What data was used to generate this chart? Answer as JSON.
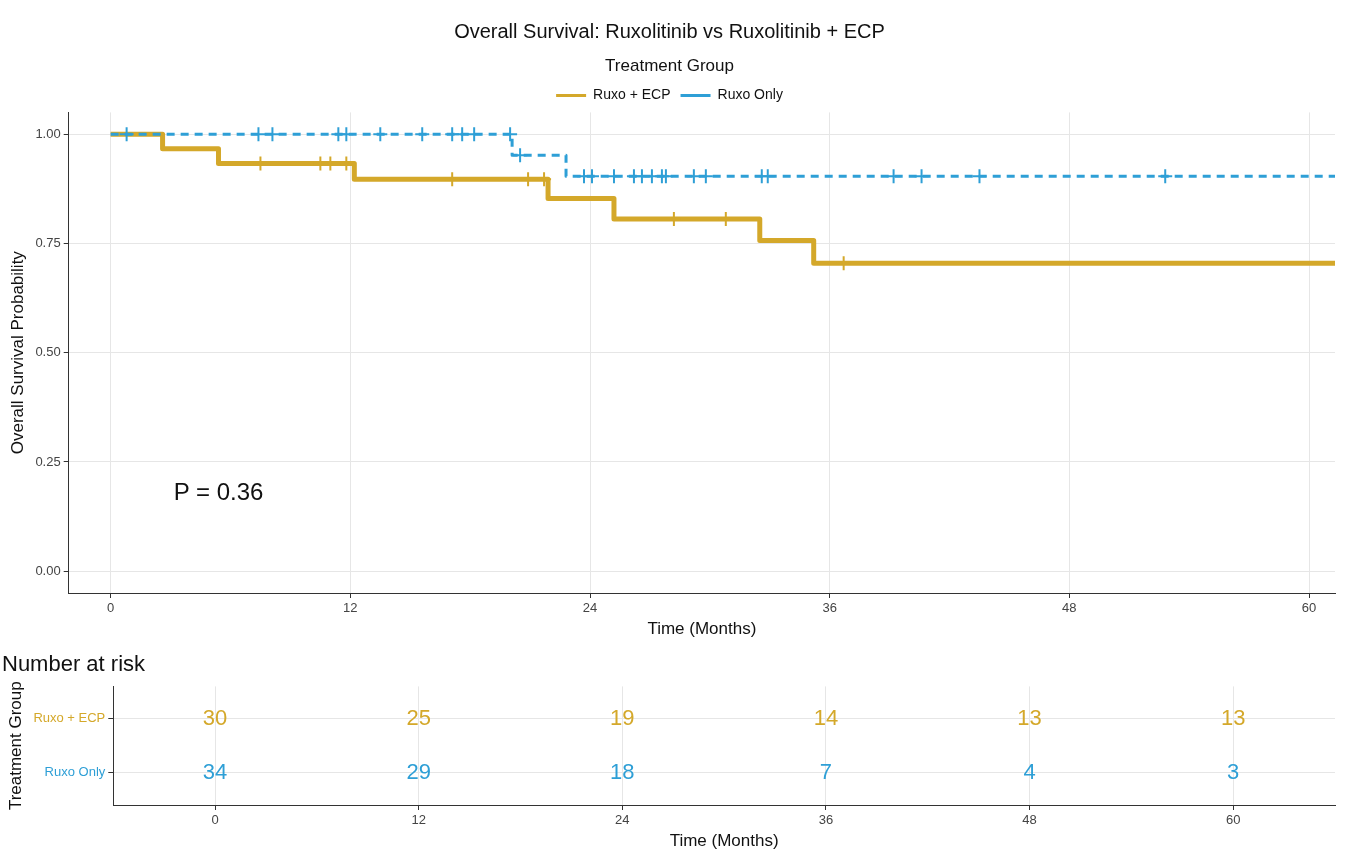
{
  "chart_data": [
    {
      "type": "step",
      "title": "Overall Survival: Ruxolitinib vs Ruxolitinib + ECP",
      "xlabel": "Time (Months)",
      "ylabel": "Overall Survival Probability",
      "legend_title": "Treatment Group",
      "legend": "top",
      "grid": true,
      "xlim": [
        -2.1,
        61.3
      ],
      "xticks": [
        0,
        12,
        24,
        36,
        48,
        60
      ],
      "ylim": [
        -0.05,
        1.05
      ],
      "yticks": [
        {
          "value": 0,
          "label": "0.00"
        },
        {
          "value": 0.25,
          "label": "0.25"
        },
        {
          "value": 0.5,
          "label": "0.50"
        },
        {
          "value": 0.75,
          "label": "0.75"
        },
        {
          "value": 1,
          "label": "1.00"
        }
      ],
      "annotations": [
        "P = 0.36"
      ],
      "series": [
        {
          "name": "Ruxo + ECP",
          "color": "#d4a82a",
          "line_style": "solid",
          "x": [
            0,
            2.6,
            5.4,
            12.2,
            21.9,
            25.2,
            32.5,
            35.2,
            61.3
          ],
          "values": [
            1,
            0.967,
            0.933,
            0.897,
            0.853,
            0.806,
            0.757,
            0.705,
            0.705
          ]
        },
        {
          "name": "Ruxo Only",
          "color": "#2e9fd6",
          "line_style": "dashed",
          "x": [
            0,
            20.1,
            22.8,
            61.3
          ],
          "values": [
            1,
            0.952,
            0.904,
            0.904
          ]
        },
        {
          "type": "scatter",
          "color": "#d4a82a",
          "marker": "cross",
          "x": [
            7.5,
            10.5,
            11,
            11.8,
            17.1,
            20.9,
            21.7,
            28.2,
            30.8,
            36.7
          ],
          "values": [
            0.933,
            0.933,
            0.933,
            0.933,
            0.897,
            0.897,
            0.897,
            0.806,
            0.806,
            0.705
          ]
        },
        {
          "type": "scatter",
          "color": "#2e9fd6",
          "marker": "cross",
          "x": [
            0.8,
            7.4,
            8.1,
            11.4,
            11.8,
            13.5,
            15.6,
            17.1,
            17.6,
            18.2,
            20.0,
            20.5,
            23.7,
            24.1,
            25.2,
            26.2,
            26.6,
            27.1,
            27.6,
            27.8,
            29.2,
            29.8,
            32.6,
            32.9,
            39.2,
            40.6,
            43.5,
            52.8
          ],
          "values": [
            1,
            1,
            1,
            1,
            1,
            1,
            1,
            1,
            1,
            1,
            1,
            0.952,
            0.904,
            0.904,
            0.904,
            0.904,
            0.904,
            0.904,
            0.904,
            0.904,
            0.904,
            0.904,
            0.904,
            0.904,
            0.904,
            0.904,
            0.904,
            0.904
          ]
        }
      ]
    },
    {
      "type": "heatmap",
      "title": "Number at risk",
      "xlabel": "Time (Months)",
      "ylabel": "Treatment Group",
      "grid": true,
      "categories": [
        "0",
        "12",
        "24",
        "36",
        "48",
        "60"
      ],
      "data_labels": true,
      "y_categories": [
        "Ruxo + ECP",
        "Ruxo Only"
      ],
      "colors": [
        "#d4a82a",
        "#2e9fd6"
      ],
      "cells": [
        [
          30,
          25,
          19,
          14,
          13,
          13
        ],
        [
          34,
          29,
          18,
          7,
          4,
          3
        ]
      ]
    }
  ]
}
